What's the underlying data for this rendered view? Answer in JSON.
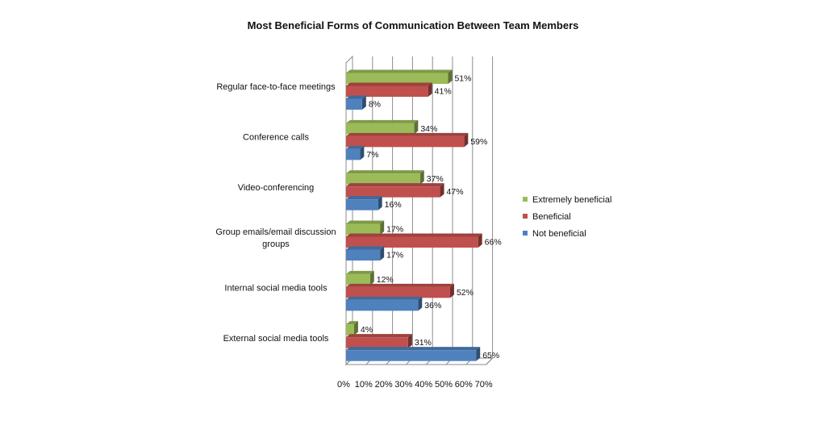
{
  "chart_data": {
    "type": "bar",
    "orientation": "horizontal",
    "style": "3d-clustered",
    "title": "Most Beneficial Forms of Communication Between Team Members",
    "categories": [
      "Regular face-to-face meetings",
      "Conference calls",
      "Video-conferencing",
      "Group emails/email discussion groups",
      "Internal social media tools",
      "External social media tools"
    ],
    "series": [
      {
        "name": "Extremely beneficial",
        "color": "#9BBB59",
        "values": [
          51,
          34,
          37,
          17,
          12,
          4
        ]
      },
      {
        "name": "Beneficial",
        "color": "#C0504D",
        "values": [
          41,
          59,
          47,
          66,
          52,
          31
        ]
      },
      {
        "name": "Not beneficial",
        "color": "#4F81BD",
        "values": [
          8,
          7,
          16,
          17,
          36,
          65
        ]
      }
    ],
    "value_suffix": "%",
    "xlim": [
      0,
      70
    ],
    "xticks": [
      "0%",
      "10%",
      "20%",
      "30%",
      "40%",
      "50%",
      "60%",
      "70%"
    ],
    "grid": "vertical",
    "legend": "right"
  }
}
